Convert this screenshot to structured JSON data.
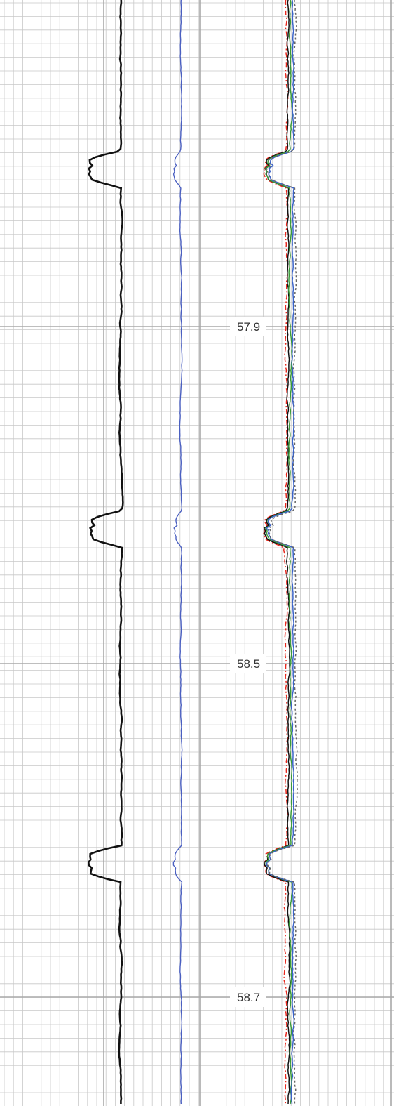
{
  "chart_data": {
    "type": "line",
    "title": "",
    "xlabel": "",
    "ylabel": "",
    "grid": true,
    "depth_markers": [
      "57.9",
      "58.5",
      "58.7"
    ],
    "repeat_event_depths": [
      57.62,
      58.26,
      58.62,
      58.89
    ],
    "tracks": [
      {
        "track": 1,
        "series_colors": [
          "#111111"
        ],
        "base_level": 0.66,
        "event_level": 0.12
      },
      {
        "track": 2,
        "series_colors": [
          "#4a5fc0"
        ],
        "base_level": 0.88,
        "event_level": 0.72
      },
      {
        "track": 3,
        "series_colors": [
          "#e8281e",
          "#111111",
          "#3a9a3a",
          "#3b63c8",
          "#666666"
        ],
        "base_level": 0.55,
        "event_level": 0.2
      }
    ]
  },
  "colors": {
    "grid_minor": "#c8c8c8",
    "grid_major": "#a8a8a8",
    "label_text": "#333333"
  }
}
